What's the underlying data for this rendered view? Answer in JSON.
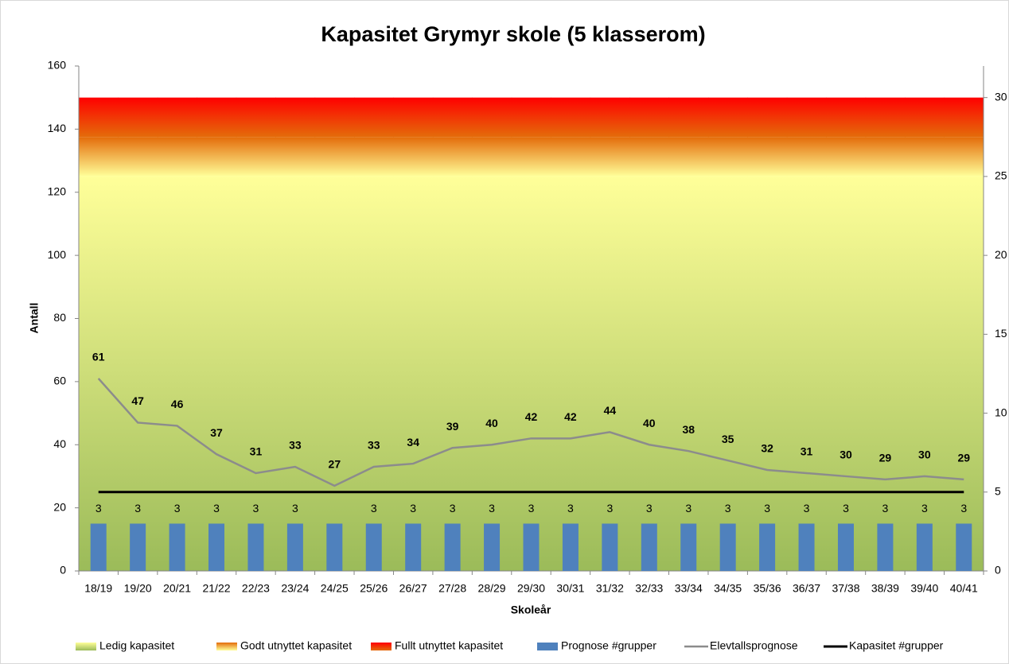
{
  "chart_data": {
    "type": "combo",
    "title": "Kapasitet Grymyr skole (5 klasserom)",
    "y_label": "Antall",
    "x_label": "Skoleår",
    "categories": [
      "18/19",
      "19/20",
      "20/21",
      "21/22",
      "22/23",
      "23/24",
      "24/25",
      "25/26",
      "26/27",
      "27/28",
      "28/29",
      "29/30",
      "30/31",
      "31/32",
      "32/33",
      "33/34",
      "34/35",
      "35/36",
      "36/37",
      "37/38",
      "38/39",
      "39/40",
      "40/41"
    ],
    "ylim": [
      0,
      160
    ],
    "yticks": [
      0,
      20,
      40,
      60,
      80,
      100,
      120,
      140,
      160
    ],
    "y2lim": [
      0,
      32
    ],
    "y2ticks": [
      0,
      5,
      10,
      15,
      20,
      25,
      30
    ],
    "legend": "bottom",
    "series": [
      {
        "name": "Ledig kapasitet",
        "type": "area",
        "axis": "y2",
        "color": [
          "#9bbb59",
          "#ffff99"
        ],
        "values": [
          25,
          25,
          25,
          25,
          25,
          25,
          25,
          25,
          25,
          25,
          25,
          25,
          25,
          25,
          25,
          25,
          25,
          25,
          25,
          25,
          25,
          25,
          25
        ]
      },
      {
        "name": "Godt utnyttet kapasitet",
        "type": "area",
        "axis": "y2",
        "color": [
          "#ffff99",
          "#e46c0a"
        ],
        "values": [
          2.5,
          2.5,
          2.5,
          2.5,
          2.5,
          2.5,
          2.5,
          2.5,
          2.5,
          2.5,
          2.5,
          2.5,
          2.5,
          2.5,
          2.5,
          2.5,
          2.5,
          2.5,
          2.5,
          2.5,
          2.5,
          2.5,
          2.5
        ]
      },
      {
        "name": "Fullt utnyttet kapasitet",
        "type": "area",
        "axis": "y2",
        "color": [
          "#e46c0a",
          "#ff0000"
        ],
        "values": [
          2.5,
          2.5,
          2.5,
          2.5,
          2.5,
          2.5,
          2.5,
          2.5,
          2.5,
          2.5,
          2.5,
          2.5,
          2.5,
          2.5,
          2.5,
          2.5,
          2.5,
          2.5,
          2.5,
          2.5,
          2.5,
          2.5,
          2.5
        ]
      },
      {
        "name": "Prognose #grupper",
        "type": "bar",
        "axis": "y2",
        "color": "#4f81bd",
        "values": [
          3,
          3,
          3,
          3,
          3,
          3,
          3,
          3,
          3,
          3,
          3,
          3,
          3,
          3,
          3,
          3,
          3,
          3,
          3,
          3,
          3,
          3,
          3
        ],
        "value_labels": [
          "3",
          "3",
          "3",
          "3",
          "3",
          "3",
          null,
          "3",
          "3",
          "3",
          "3",
          "3",
          "3",
          "3",
          "3",
          "3",
          "3",
          "3",
          "3",
          "3",
          "3",
          "3",
          "3"
        ]
      },
      {
        "name": "Elevtallsprognose",
        "type": "line",
        "color": "#8c8c8c",
        "labels": true,
        "values": [
          61,
          47,
          46,
          37,
          31,
          33,
          27,
          33,
          34,
          39,
          40,
          42,
          42,
          44,
          40,
          38,
          35,
          32,
          31,
          30,
          29,
          30,
          29
        ]
      },
      {
        "name": "Kapasitet #grupper",
        "type": "line",
        "axis": "y2",
        "color": "#000000",
        "values": [
          5,
          5,
          5,
          5,
          5,
          5,
          5,
          5,
          5,
          5,
          5,
          5,
          5,
          5,
          5,
          5,
          5,
          5,
          5,
          5,
          5,
          5,
          5
        ]
      }
    ]
  }
}
